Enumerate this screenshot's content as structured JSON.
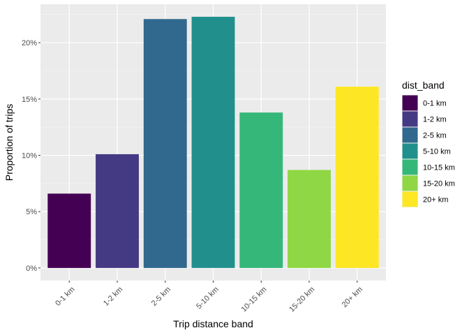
{
  "chart_data": {
    "type": "bar",
    "categories": [
      "0-1 km",
      "1-2 km",
      "2-5 km",
      "5-10 km",
      "10-15 km",
      "15-20 km",
      "20+ km"
    ],
    "values": [
      0.066,
      0.101,
      0.221,
      0.223,
      0.138,
      0.087,
      0.161
    ],
    "colors": [
      "#440154",
      "#443A83",
      "#31688E",
      "#21908C",
      "#35B779",
      "#8FD744",
      "#FDE725"
    ],
    "xlabel": "Trip distance band",
    "ylabel": "Proportion of trips",
    "ylim": [
      -0.0112,
      0.2342
    ],
    "yticks": [
      0,
      0.05,
      0.1,
      0.15,
      0.2
    ],
    "ytick_labels": [
      "0%",
      "5%",
      "10%",
      "15%",
      "20%"
    ],
    "grid": true,
    "legend": {
      "title": "dist_band",
      "placement": "right",
      "entries": [
        "0-1 km",
        "1-2 km",
        "2-5 km",
        "5-10 km",
        "10-15 km",
        "15-20 km",
        "20+ km"
      ]
    },
    "panel_background": "#EBEBEB"
  }
}
